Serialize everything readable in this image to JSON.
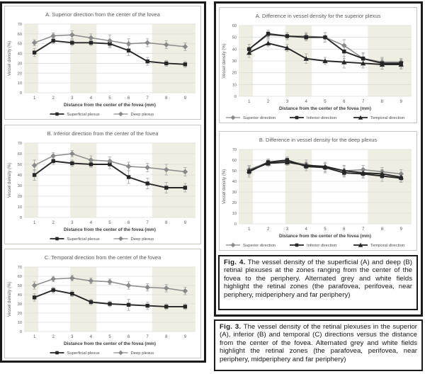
{
  "colors": {
    "black_series": "#262626",
    "grey_series": "#8a8a8a",
    "error_bar": "#a3a3a3",
    "band": "#efeee2",
    "gridline": "#dcdcda",
    "title_text": "#595959",
    "tick_text": "#595959",
    "axis_title_text": "#3b3b3b",
    "legend_text": "#4a4a4a"
  },
  "captions": {
    "fig4": {
      "label": "Fig. 4.",
      "text": "The vessel density of the superficial (A) and deep (B) retinal plexuses at the zones ranging from the center of the fovea to the periphery. Alternated grey and white fields highlight the retinal zones (the parafovea, perifovea, near periphery, midperiphery and far periphery)"
    },
    "fig3": {
      "label": "Fig. 3.",
      "text": "The vessel density of the retinal plexuses in the superior (A), inferior (B) and temporal (C) directions versus the distance from the center of the fovea. Alternated grey and white fields highlight the retinal zones (the parafovea, perifovea, near periphery, midperiphery and far periphery)"
    }
  },
  "chart_data": [
    {
      "id": "fig3a",
      "type": "line",
      "title": "A. Superior direction from the center of the fovea",
      "categories": [
        "1",
        "2",
        "3",
        "4",
        "5",
        "6",
        "7",
        "8",
        "9"
      ],
      "xlabel": "Distance from the center of the fovea (mm)",
      "ylabel": "Vessel density (%)",
      "ylim": [
        0,
        70
      ],
      "ytick_step": 10,
      "bands": [
        [
          0.45,
          1.2
        ],
        [
          2.9,
          4.3
        ],
        [
          7.25,
          9.55
        ]
      ],
      "legend_position": "bottom",
      "series": [
        {
          "name": "Superficial plexus",
          "marker": "square",
          "color": "black",
          "values": [
            41,
            53,
            51,
            51,
            50,
            43,
            32,
            30,
            29
          ],
          "err": [
            4,
            3,
            3,
            3,
            4,
            5,
            4,
            3,
            3
          ]
        },
        {
          "name": "Deep plexus",
          "marker": "diamond",
          "color": "grey",
          "values": [
            51,
            58,
            59,
            56,
            53,
            50,
            51,
            49,
            47
          ],
          "err": [
            3,
            3,
            4,
            4,
            6,
            5,
            4,
            4,
            4
          ]
        }
      ]
    },
    {
      "id": "fig3b",
      "type": "line",
      "title": "B. Inferior direction from the center of the fovea",
      "categories": [
        "1",
        "2",
        "3",
        "4",
        "5",
        "6",
        "7",
        "8",
        "9"
      ],
      "xlabel": "Distance from the center of the fovea (mm)",
      "ylabel": "Vessel density (%)",
      "ylim": [
        0,
        70
      ],
      "ytick_step": 10,
      "bands": [
        [
          0.45,
          1.2
        ],
        [
          2.9,
          4.3
        ],
        [
          7.25,
          9.55
        ]
      ],
      "legend_position": "bottom",
      "series": [
        {
          "name": "Superficial plexus",
          "marker": "square",
          "color": "black",
          "values": [
            40,
            53,
            51,
            50,
            50,
            38,
            32,
            28,
            28
          ],
          "err": [
            5,
            3,
            3,
            3,
            4,
            6,
            5,
            5,
            4
          ]
        },
        {
          "name": "Deep plexus",
          "marker": "diamond",
          "color": "grey",
          "values": [
            49,
            58,
            60,
            54,
            53,
            48,
            47,
            45,
            43
          ],
          "err": [
            5,
            3,
            3,
            4,
            4,
            4,
            4,
            5,
            4
          ]
        }
      ]
    },
    {
      "id": "fig3c",
      "type": "line",
      "title": "C. Temporal direction from the center of the fovea",
      "categories": [
        "1",
        "2",
        "3",
        "4",
        "5",
        "6",
        "7",
        "8",
        "9"
      ],
      "xlabel": "Distance from the center of the fovea (mm)",
      "ylabel": "Vessel density (%)",
      "ylim": [
        0,
        70
      ],
      "ytick_step": 10,
      "bands": [
        [
          0.45,
          1.2
        ],
        [
          2.9,
          4.3
        ],
        [
          7.25,
          9.55
        ]
      ],
      "legend_position": "bottom",
      "series": [
        {
          "name": "Superficial plexus",
          "marker": "square",
          "color": "black",
          "values": [
            37,
            45,
            41,
            32,
            30,
            29,
            28,
            27,
            27
          ],
          "err": [
            4,
            3,
            3,
            3,
            3,
            6,
            4,
            3,
            3
          ]
        },
        {
          "name": "Deep plexus",
          "marker": "diamond",
          "color": "grey",
          "values": [
            50,
            57,
            58,
            55,
            54,
            50,
            48,
            47,
            44
          ],
          "err": [
            4,
            3,
            3,
            3,
            3,
            4,
            4,
            4,
            4
          ]
        }
      ]
    },
    {
      "id": "fig4a",
      "type": "line",
      "title": "A. Difference in vessel density for the superior plexus",
      "categories": [
        "1",
        "2",
        "3",
        "4",
        "5",
        "6",
        "7",
        "8",
        "9"
      ],
      "xlabel": "Distance from the center of the fovea (mm)",
      "ylabel": "Vessel density (%)",
      "ylim": [
        0,
        60
      ],
      "ytick_step": 10,
      "bands": [
        [
          0.45,
          1.2
        ],
        [
          2.9,
          4.3
        ],
        [
          7.25,
          9.55
        ]
      ],
      "legend_position": "bottom",
      "series": [
        {
          "name": "Superior direction",
          "marker": "diamond",
          "color": "grey",
          "values": [
            40,
            52,
            51,
            51,
            50,
            43,
            32,
            29,
            29
          ],
          "err": [
            4,
            3,
            3,
            3,
            4,
            5,
            4,
            3,
            3
          ]
        },
        {
          "name": "Inferior direction",
          "marker": "square",
          "color": "black",
          "values": [
            40,
            53,
            51,
            50,
            50,
            38,
            32,
            28,
            28
          ],
          "err": [
            4,
            3,
            3,
            3,
            4,
            6,
            5,
            5,
            4
          ]
        },
        {
          "name": "Temporal direction",
          "marker": "triangle",
          "color": "black",
          "values": [
            37,
            45,
            41,
            32,
            30,
            29,
            28,
            27,
            27
          ],
          "err": [
            4,
            3,
            3,
            4,
            3,
            5,
            4,
            4,
            4
          ]
        }
      ]
    },
    {
      "id": "fig4b",
      "type": "line",
      "title": "B. Difference in vessel density for the deep plexus",
      "categories": [
        "1",
        "2",
        "3",
        "4",
        "5",
        "6",
        "7",
        "8",
        "9"
      ],
      "xlabel": "Distance from the center of the fovea (mm)",
      "ylabel": "Vessel density (%)",
      "ylim": [
        0,
        70
      ],
      "ytick_step": 10,
      "bands": [
        [
          0.45,
          1.2
        ],
        [
          2.9,
          4.3
        ],
        [
          7.25,
          9.55
        ]
      ],
      "legend_position": "bottom",
      "series": [
        {
          "name": "Superior direction",
          "marker": "diamond",
          "color": "grey",
          "values": [
            51,
            58,
            59,
            56,
            53,
            50,
            51,
            49,
            47
          ],
          "err": [
            4,
            3,
            3,
            4,
            5,
            5,
            4,
            4,
            4
          ]
        },
        {
          "name": "Inferior direction",
          "marker": "square",
          "color": "black",
          "values": [
            49,
            58,
            60,
            54,
            53,
            48,
            47,
            45,
            43
          ],
          "err": [
            5,
            3,
            3,
            4,
            4,
            4,
            4,
            5,
            4
          ]
        },
        {
          "name": "Temporal direction",
          "marker": "triangle",
          "color": "black",
          "values": [
            50,
            57,
            58,
            55,
            54,
            50,
            48,
            47,
            44
          ],
          "err": [
            4,
            3,
            3,
            3,
            3,
            4,
            4,
            4,
            4
          ]
        }
      ]
    }
  ]
}
